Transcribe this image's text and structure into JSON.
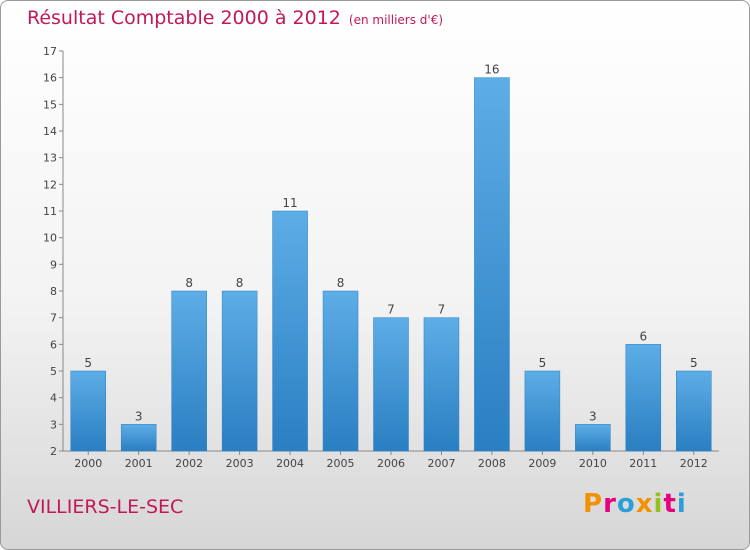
{
  "title": "Résultat Comptable 2000 à 2012",
  "unit": "(en milliers d'€)",
  "town": "VILLIERS-LE-SEC",
  "logo": "Proxiti",
  "colors": {
    "bar": "#3a93d6",
    "bar_light": "#5dade6",
    "title": "#c2185b"
  },
  "chart_data": {
    "type": "bar",
    "title": "Résultat Comptable 2000 à 2012",
    "ylabel": "(en milliers d'€)",
    "xlabel": "",
    "categories": [
      "2000",
      "2001",
      "2002",
      "2003",
      "2004",
      "2005",
      "2006",
      "2007",
      "2008",
      "2009",
      "2010",
      "2011",
      "2012"
    ],
    "values": [
      5,
      3,
      8,
      8,
      11,
      8,
      7,
      7,
      16,
      5,
      3,
      6,
      5
    ],
    "ylim": [
      2,
      17
    ],
    "yticks": [
      2,
      3,
      4,
      5,
      6,
      7,
      8,
      9,
      10,
      11,
      12,
      13,
      14,
      15,
      16,
      17
    ],
    "grid": false,
    "data_labels": true
  }
}
